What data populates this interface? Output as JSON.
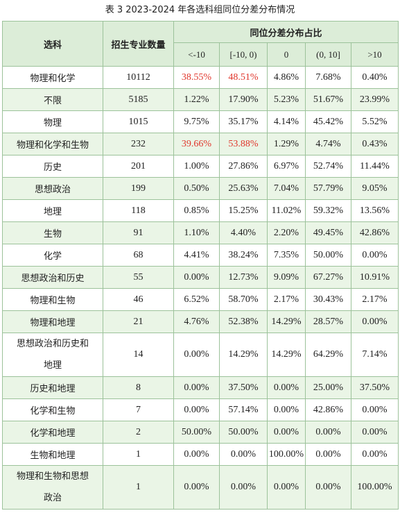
{
  "title": "表 3 2023-2024 年各选科组同位分差分布情况",
  "table": {
    "header": {
      "subject": "选科",
      "count": "招生专业数量",
      "group": "同位分差分布占比",
      "bins": [
        "<-10",
        "[-10, 0)",
        "0",
        "(0, 10]",
        ">10"
      ]
    },
    "rows": [
      [
        "物理和化学",
        "10112",
        {
          "text": "38.55%",
          "color": "#e0362c"
        },
        {
          "text": "48.51%",
          "color": "#e0362c"
        },
        "4.86%",
        "7.68%",
        "0.40%"
      ],
      [
        "不限",
        "5185",
        "1.22%",
        "17.90%",
        "5.23%",
        "51.67%",
        "23.99%"
      ],
      [
        "物理",
        "1015",
        "9.75%",
        "35.17%",
        "4.14%",
        "45.42%",
        "5.52%"
      ],
      [
        "物理和化学和生物",
        "232",
        {
          "text": "39.66%",
          "color": "#e0362c"
        },
        {
          "text": "53.88%",
          "color": "#e0362c"
        },
        "1.29%",
        "4.74%",
        "0.43%"
      ],
      [
        "历史",
        "201",
        "1.00%",
        "27.86%",
        "6.97%",
        "52.74%",
        "11.44%"
      ],
      [
        "思想政治",
        "199",
        "0.50%",
        "25.63%",
        "7.04%",
        "57.79%",
        "9.05%"
      ],
      [
        "地理",
        "118",
        "0.85%",
        "15.25%",
        "11.02%",
        "59.32%",
        "13.56%"
      ],
      [
        "生物",
        "91",
        "1.10%",
        "4.40%",
        "2.20%",
        "49.45%",
        "42.86%"
      ],
      [
        "化学",
        "68",
        "4.41%",
        "38.24%",
        "7.35%",
        "50.00%",
        "0.00%"
      ],
      [
        "思想政治和历史",
        "55",
        "0.00%",
        "12.73%",
        "9.09%",
        "67.27%",
        "10.91%"
      ],
      [
        "物理和生物",
        "46",
        "6.52%",
        "58.70%",
        "2.17%",
        "30.43%",
        "2.17%"
      ],
      [
        "物理和地理",
        "21",
        "4.76%",
        "52.38%",
        "14.29%",
        "28.57%",
        "0.00%"
      ],
      [
        {
          "lines": [
            "思想政治和历史和",
            "地理"
          ]
        },
        "14",
        "0.00%",
        "14.29%",
        "14.29%",
        "64.29%",
        "7.14%"
      ],
      [
        "历史和地理",
        "8",
        "0.00%",
        "37.50%",
        "0.00%",
        "25.00%",
        "37.50%"
      ],
      [
        "化学和生物",
        "7",
        "0.00%",
        "57.14%",
        "0.00%",
        "42.86%",
        "0.00%"
      ],
      [
        "化学和地理",
        "2",
        "50.00%",
        "50.00%",
        "0.00%",
        "0.00%",
        "0.00%"
      ],
      [
        "生物和地理",
        "1",
        "0.00%",
        "0.00%",
        "100.00%",
        "0.00%",
        "0.00%"
      ],
      [
        {
          "lines": [
            "物理和生物和思想",
            "政治"
          ]
        },
        "1",
        "0.00%",
        "0.00%",
        "0.00%",
        "0.00%",
        "100.00%"
      ]
    ]
  }
}
